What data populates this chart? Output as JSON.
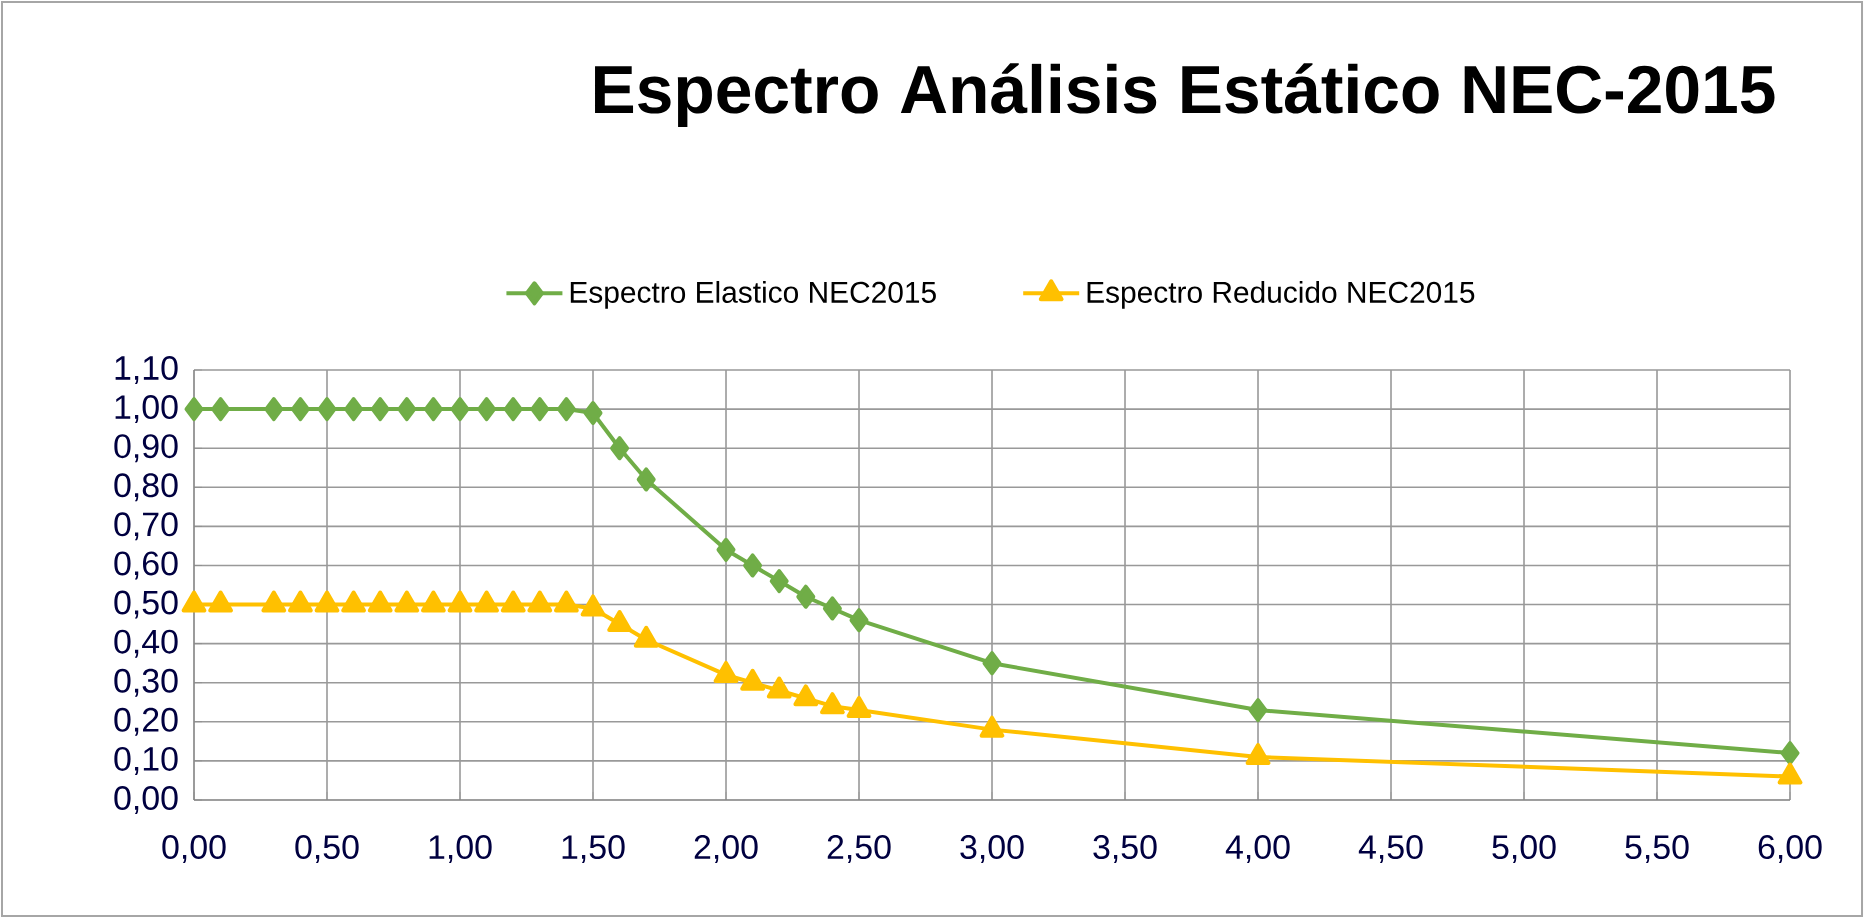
{
  "chart_data": {
    "type": "line",
    "title": "Espectro Análisis Estático NEC-2015",
    "x": [
      0,
      0.1,
      0.3,
      0.4,
      0.5,
      0.6,
      0.7,
      0.8,
      0.9,
      1.0,
      1.1,
      1.2,
      1.3,
      1.4,
      1.5,
      1.6,
      1.7,
      2.0,
      2.1,
      2.2,
      2.3,
      2.4,
      2.5,
      3.0,
      4.0,
      6.0
    ],
    "series": [
      {
        "name": "Espectro Elastico NEC2015",
        "color": "#70ad47",
        "marker": "diamond",
        "values": [
          1.0,
          1.0,
          1.0,
          1.0,
          1.0,
          1.0,
          1.0,
          1.0,
          1.0,
          1.0,
          1.0,
          1.0,
          1.0,
          1.0,
          0.99,
          0.9,
          0.82,
          0.64,
          0.6,
          0.56,
          0.52,
          0.49,
          0.46,
          0.35,
          0.23,
          0.12
        ]
      },
      {
        "name": "Espectro Reducido NEC2015",
        "color": "#ffc000",
        "marker": "triangle",
        "values": [
          0.5,
          0.5,
          0.5,
          0.5,
          0.5,
          0.5,
          0.5,
          0.5,
          0.5,
          0.5,
          0.5,
          0.5,
          0.5,
          0.5,
          0.49,
          0.45,
          0.41,
          0.32,
          0.3,
          0.28,
          0.26,
          0.24,
          0.23,
          0.18,
          0.11,
          0.06
        ]
      }
    ],
    "xlim": [
      0,
      6
    ],
    "ylim": [
      0,
      1.1
    ],
    "xticks": [
      {
        "value": 0,
        "label": "0,00"
      },
      {
        "value": 0.5,
        "label": "0,50"
      },
      {
        "value": 1,
        "label": "1,00"
      },
      {
        "value": 1.5,
        "label": "1,50"
      },
      {
        "value": 2,
        "label": "2,00"
      },
      {
        "value": 2.5,
        "label": "2,50"
      },
      {
        "value": 3,
        "label": "3,00"
      },
      {
        "value": 3.5,
        "label": "3,50"
      },
      {
        "value": 4,
        "label": "4,00"
      },
      {
        "value": 4.5,
        "label": "4,50"
      },
      {
        "value": 5,
        "label": "5,00"
      },
      {
        "value": 5.5,
        "label": "5,50"
      },
      {
        "value": 6,
        "label": "6,00"
      }
    ],
    "yticks": [
      {
        "value": 0,
        "label": "0,00"
      },
      {
        "value": 0.1,
        "label": "0,10"
      },
      {
        "value": 0.2,
        "label": "0,20"
      },
      {
        "value": 0.3,
        "label": "0,30"
      },
      {
        "value": 0.4,
        "label": "0,40"
      },
      {
        "value": 0.5,
        "label": "0,50"
      },
      {
        "value": 0.6,
        "label": "0,60"
      },
      {
        "value": 0.7,
        "label": "0,70"
      },
      {
        "value": 0.8,
        "label": "0,80"
      },
      {
        "value": 0.9,
        "label": "0,90"
      },
      {
        "value": 1.0,
        "label": "1,00"
      },
      {
        "value": 1.1,
        "label": "1,10"
      }
    ],
    "grid": true,
    "legend": "top",
    "line_style": "solid"
  }
}
